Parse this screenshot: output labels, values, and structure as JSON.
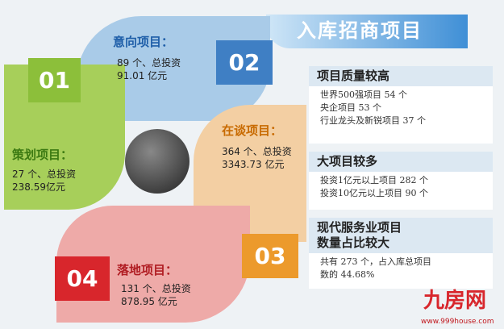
{
  "title": "入库招商项目",
  "stages": [
    {
      "num": "01",
      "label": "策划项目：",
      "line1": "27 个、总投资",
      "line2": "238.59亿元",
      "color": "#a7cf5a"
    },
    {
      "num": "02",
      "label": "意向项目：",
      "line1": "89 个、总投资",
      "line2": "91.01 亿元",
      "color": "#a9cbe8"
    },
    {
      "num": "03",
      "label": "在谈项目：",
      "line1": "364 个、总投资",
      "line2": "3343.73 亿元",
      "color": "#f3cfa3"
    },
    {
      "num": "04",
      "label": "落地项目：",
      "line1": "131 个、总投资",
      "line2": "878.95 亿元",
      "color": "#eeaaa8"
    }
  ],
  "boxes": [
    {
      "heading": "项目质量较高",
      "lines": [
        "世界500强项目 54 个",
        "央企项目 53 个",
        "行业龙头及新锐项目 37 个"
      ]
    },
    {
      "heading": "大项目较多",
      "lines": [
        "投资1亿元以上项目 282 个",
        "投资10亿元以上项目 90 个"
      ]
    },
    {
      "heading": "现代服务业项目\n数量占比较大",
      "lines": [
        "共有 273 个，占入库总项目",
        "数的 44.68%"
      ]
    }
  ],
  "watermark": {
    "logo": "九房网",
    "url": "www.999house.com"
  }
}
